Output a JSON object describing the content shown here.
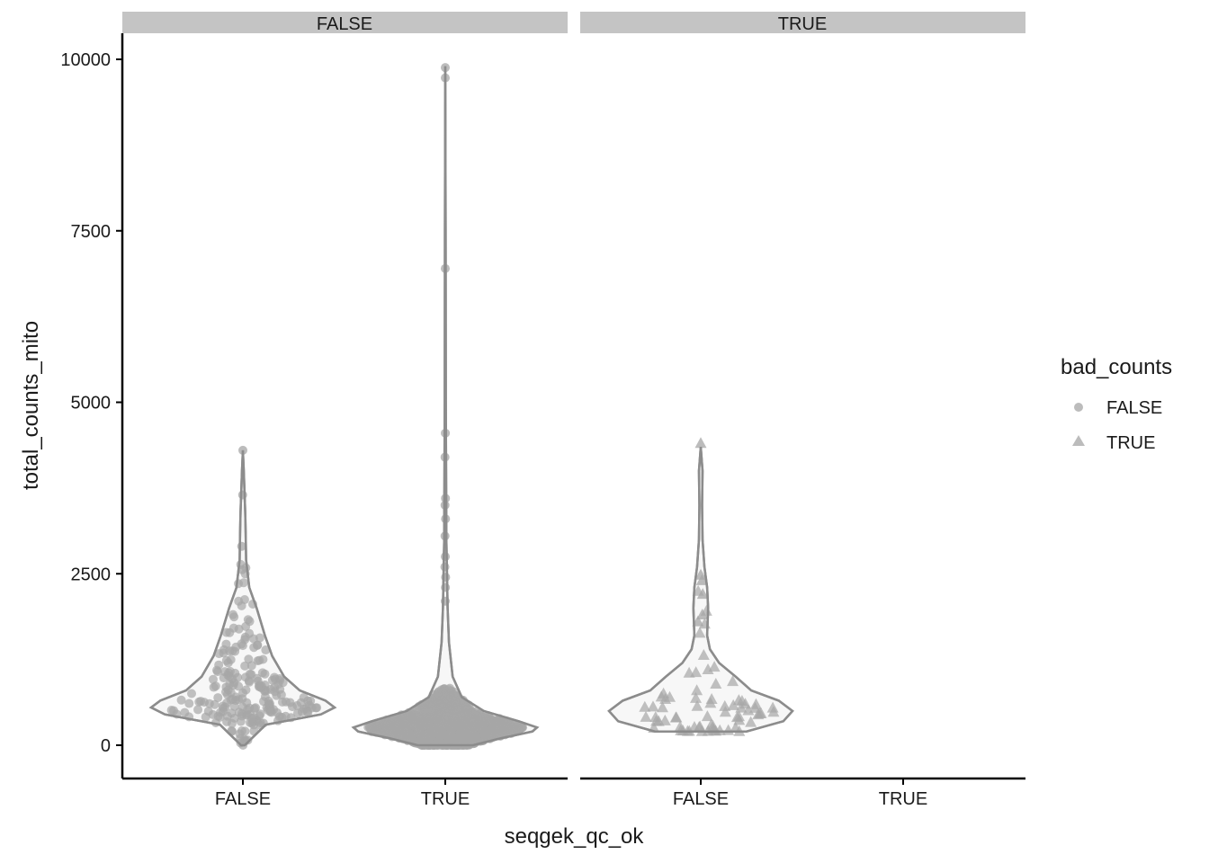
{
  "chart_data": {
    "type": "violin",
    "xlabel": "seqgek_qc_ok",
    "ylabel": "total_counts_mito",
    "ylim": [
      -500,
      10400
    ],
    "yticks": [
      0,
      2500,
      5000,
      7500,
      10000
    ],
    "categories": [
      "FALSE",
      "TRUE"
    ],
    "facet_variable": "facet",
    "facets": [
      {
        "label": "FALSE",
        "groups": [
          {
            "x": "FALSE",
            "shape": "circle",
            "violin": [
              [
                0,
                0.02
              ],
              [
                300,
                0.25
              ],
              [
                450,
                0.85
              ],
              [
                550,
                1.0
              ],
              [
                650,
                0.9
              ],
              [
                800,
                0.62
              ],
              [
                1000,
                0.45
              ],
              [
                1300,
                0.32
              ],
              [
                1600,
                0.24
              ],
              [
                2000,
                0.15
              ],
              [
                2300,
                0.07
              ],
              [
                2700,
                0.035
              ],
              [
                3100,
                0.03
              ],
              [
                3400,
                0.025
              ],
              [
                3700,
                0.018
              ],
              [
                4000,
                0.01
              ],
              [
                4300,
                0.0
              ]
            ],
            "summary": {
              "min": 0,
              "max": 4300,
              "median": 850,
              "outliers": [
                4300,
                3650,
                2900,
                2560
              ]
            }
          },
          {
            "x": "TRUE",
            "shape": "circle",
            "violin": [
              [
                0,
                0.3
              ],
              [
                100,
                0.6
              ],
              [
                200,
                0.95
              ],
              [
                260,
                1.0
              ],
              [
                350,
                0.8
              ],
              [
                500,
                0.42
              ],
              [
                700,
                0.18
              ],
              [
                1000,
                0.08
              ],
              [
                1500,
                0.04
              ],
              [
                2000,
                0.025
              ],
              [
                3000,
                0.012
              ],
              [
                5000,
                0.006
              ],
              [
                7500,
                0.004
              ],
              [
                9900,
                0.0
              ]
            ],
            "summary": {
              "min": 0,
              "max": 9880,
              "median": 260,
              "outliers": [
                9880,
                9730,
                6950,
                4550,
                4200,
                3600,
                3500,
                3300,
                3050,
                2750,
                2600,
                2450,
                2300,
                2100
              ]
            }
          }
        ]
      },
      {
        "label": "TRUE",
        "groups": [
          {
            "x": "FALSE",
            "shape": "triangle",
            "violin": [
              [
                200,
                0.5
              ],
              [
                350,
                0.9
              ],
              [
                500,
                1.0
              ],
              [
                650,
                0.85
              ],
              [
                800,
                0.55
              ],
              [
                1000,
                0.38
              ],
              [
                1200,
                0.2
              ],
              [
                1400,
                0.1
              ],
              [
                1600,
                0.07
              ],
              [
                2000,
                0.08
              ],
              [
                2300,
                0.07
              ],
              [
                2600,
                0.04
              ],
              [
                3000,
                0.02
              ],
              [
                3500,
                0.015
              ],
              [
                4000,
                0.02
              ],
              [
                4350,
                0.0
              ]
            ],
            "summary": {
              "min": 210,
              "max": 4400,
              "median": 650,
              "outliers": [
                4400,
                2480,
                2400,
                2200,
                1900,
                1800
              ]
            }
          }
        ]
      }
    ],
    "legend": {
      "title": "bad_counts",
      "position": "right",
      "entries": [
        {
          "label": "FALSE",
          "shape": "circle"
        },
        {
          "label": "TRUE",
          "shape": "triangle"
        }
      ]
    },
    "colors": {
      "violin_stroke": "#8c8c8c",
      "violin_fill": "#f7f7f7",
      "point": "#a6a6a6",
      "strip_bg": "#c4c4c4",
      "axis": "#000000"
    }
  }
}
